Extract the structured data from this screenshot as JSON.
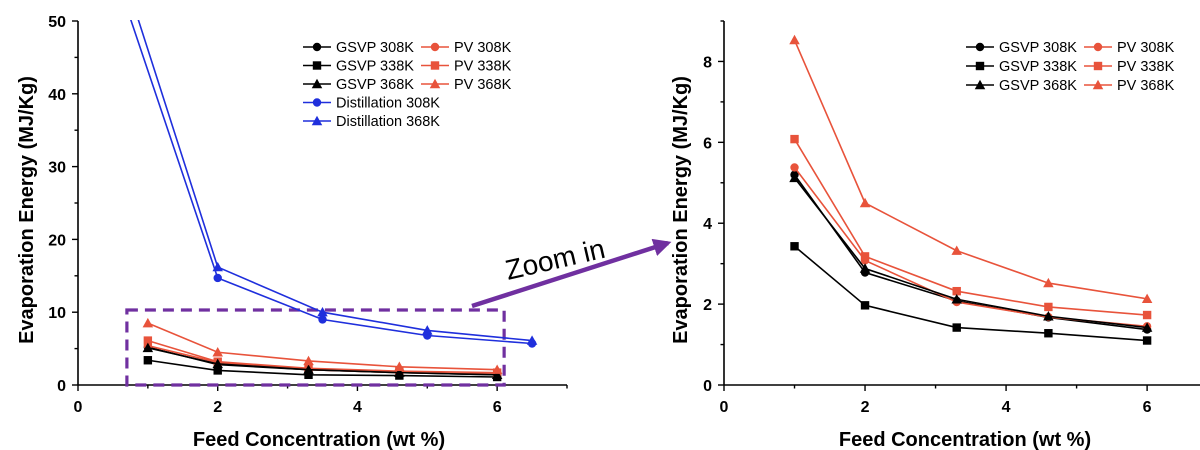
{
  "colors": {
    "gsvp": "#000000",
    "pv": "#e8533b",
    "distillation": "#1f2fdc",
    "zoom": "#7030a0"
  },
  "chart_data": [
    {
      "type": "line",
      "xlabel": "Feed Concentration (wt %)",
      "ylabel": "Evaporation Energy (MJ/Kg)",
      "xlim": [
        0,
        7
      ],
      "ylim": [
        0,
        50
      ],
      "xticks": [
        0,
        2,
        4,
        6
      ],
      "yticks": [
        0,
        10,
        20,
        30,
        40,
        50
      ],
      "legend_position": "top-right",
      "legend_columns": 2,
      "series": [
        {
          "name": "GSVP 308K",
          "color": "#000000",
          "marker": "circle",
          "x": [
            1,
            2,
            3.3,
            4.6,
            6
          ],
          "y": [
            5.2,
            2.8,
            2.1,
            1.7,
            1.4
          ]
        },
        {
          "name": "PV 308K",
          "color": "#e8533b",
          "marker": "circle",
          "x": [
            1,
            2,
            3.3,
            4.6,
            6
          ],
          "y": [
            5.4,
            3.1,
            2.1,
            1.7,
            1.5
          ]
        },
        {
          "name": "GSVP 338K",
          "color": "#000000",
          "marker": "square",
          "x": [
            1,
            2,
            3.3,
            4.6,
            6
          ],
          "y": [
            3.4,
            2.0,
            1.4,
            1.3,
            1.1
          ]
        },
        {
          "name": "PV 338K",
          "color": "#e8533b",
          "marker": "square",
          "x": [
            1,
            2,
            3.3,
            4.6,
            6
          ],
          "y": [
            6.1,
            3.2,
            2.3,
            1.9,
            1.7
          ]
        },
        {
          "name": "GSVP 368K",
          "color": "#000000",
          "marker": "triangle",
          "x": [
            1,
            2,
            3.3,
            4.6,
            6
          ],
          "y": [
            5.1,
            2.9,
            2.1,
            1.7,
            1.4
          ]
        },
        {
          "name": "PV 368K",
          "color": "#e8533b",
          "marker": "triangle",
          "x": [
            1,
            2,
            3.3,
            4.6,
            6
          ],
          "y": [
            8.5,
            4.5,
            3.3,
            2.5,
            2.1
          ]
        },
        {
          "name": "Distillation 308K",
          "color": "#1f2fdc",
          "marker": "circle",
          "x": [
            0.2,
            2,
            3.5,
            5,
            6.5
          ],
          "y": [
            66,
            14.7,
            9.0,
            6.8,
            5.7
          ]
        },
        {
          "name": "Distillation 368K",
          "color": "#1f2fdc",
          "marker": "triangle",
          "x": [
            0.2,
            2,
            3.5,
            5,
            6.5
          ],
          "y": [
            70,
            16.2,
            10.0,
            7.5,
            6.1
          ]
        }
      ],
      "highlight_region": {
        "x": [
          0.7,
          6.1
        ],
        "y": [
          0,
          10.3
        ]
      }
    },
    {
      "type": "line",
      "xlabel": "Feed Concentration (wt %)",
      "ylabel": "Evaporation Energy (MJ/Kg)",
      "xlim": [
        0,
        6.75
      ],
      "ylim": [
        0,
        9
      ],
      "xticks": [
        0,
        2,
        4,
        6
      ],
      "yticks": [
        0,
        2,
        4,
        6,
        8
      ],
      "legend_position": "top-right",
      "legend_columns": 2,
      "series": [
        {
          "name": "GSVP 308K",
          "color": "#000000",
          "marker": "circle",
          "x": [
            1,
            2,
            3.3,
            4.6,
            6
          ],
          "y": [
            5.2,
            2.78,
            2.08,
            1.67,
            1.37
          ]
        },
        {
          "name": "PV 308K",
          "color": "#e8533b",
          "marker": "circle",
          "x": [
            1,
            2,
            3.3,
            4.6,
            6
          ],
          "y": [
            5.38,
            3.08,
            2.05,
            1.68,
            1.45
          ]
        },
        {
          "name": "GSVP 338K",
          "color": "#000000",
          "marker": "square",
          "x": [
            1,
            2,
            3.3,
            4.6,
            6
          ],
          "y": [
            3.43,
            1.97,
            1.42,
            1.28,
            1.1
          ]
        },
        {
          "name": "PV 338K",
          "color": "#e8533b",
          "marker": "square",
          "x": [
            1,
            2,
            3.3,
            4.6,
            6
          ],
          "y": [
            6.08,
            3.18,
            2.32,
            1.93,
            1.73
          ]
        },
        {
          "name": "GSVP 368K",
          "color": "#000000",
          "marker": "triangle",
          "x": [
            1,
            2,
            3.3,
            4.6,
            6
          ],
          "y": [
            5.12,
            2.88,
            2.12,
            1.7,
            1.42
          ]
        },
        {
          "name": "PV 368K",
          "color": "#e8533b",
          "marker": "triangle",
          "x": [
            1,
            2,
            3.3,
            4.6,
            6
          ],
          "y": [
            8.53,
            4.5,
            3.32,
            2.52,
            2.13
          ]
        }
      ]
    }
  ],
  "annotation": {
    "text": "Zoom in"
  }
}
